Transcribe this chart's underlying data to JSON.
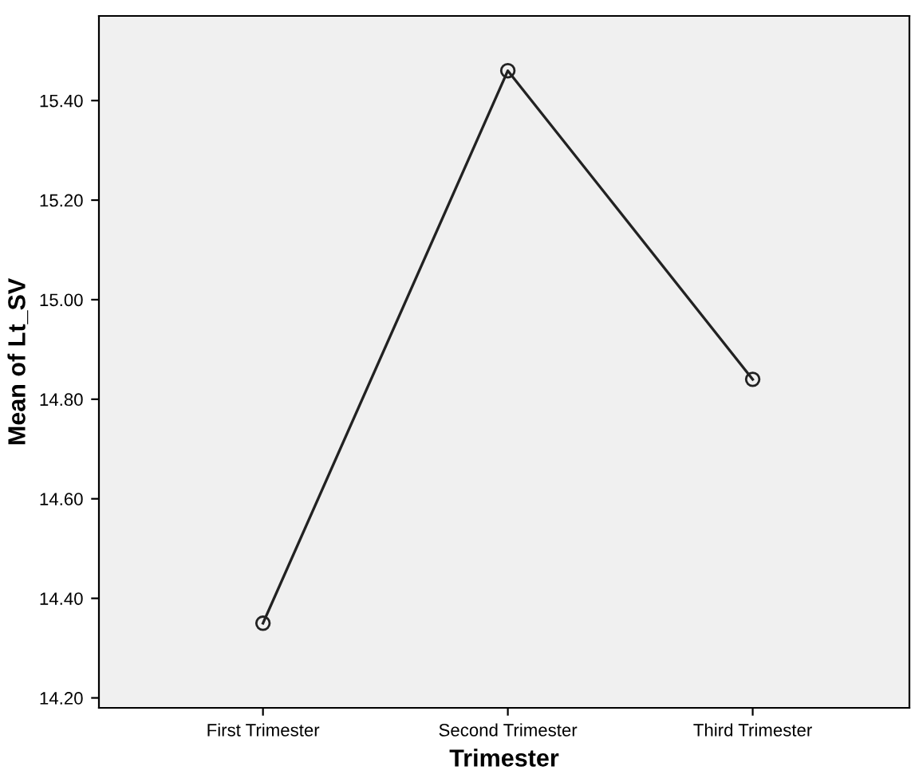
{
  "chart_data": {
    "type": "line",
    "xlabel": "Trimester",
    "ylabel": "Mean of Lt_SV",
    "categories": [
      "First Trimester",
      "Second Trimester",
      "Third Trimester"
    ],
    "series": [
      {
        "color": "#222222",
        "values": [
          14.35,
          15.46,
          14.84
        ]
      }
    ],
    "marker": "circle",
    "line_style": "solid",
    "ylim": [
      14.18,
      15.57
    ],
    "yticks": [
      {
        "value": 14.2,
        "label": "14.20"
      },
      {
        "value": 14.4,
        "label": "14.40"
      },
      {
        "value": 14.6,
        "label": "14.60"
      },
      {
        "value": 14.8,
        "label": "14.80"
      },
      {
        "value": 15.0,
        "label": "15.00"
      },
      {
        "value": 15.2,
        "label": "15.20"
      },
      {
        "value": 15.4,
        "label": "15.40"
      }
    ],
    "grid": false,
    "legend": false
  }
}
